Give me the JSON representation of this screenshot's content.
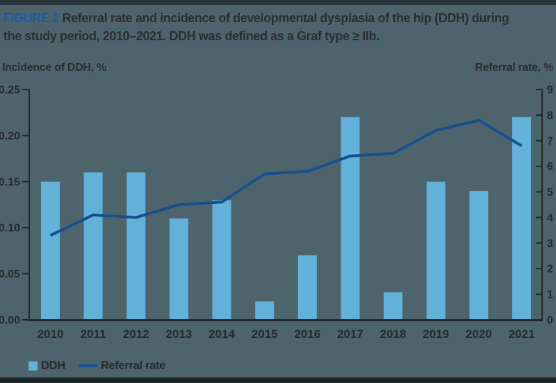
{
  "header": {
    "figure_label": "FIGURE 2",
    "title_line1": "Referral rate and incidence of developmental dysplasia of the hip (DDH) during",
    "title_line2": "the study period, 2010–2021. DDH was defined as a Graf type ≥ IIb."
  },
  "colors": {
    "background": "#4e646d",
    "top_bar": "#2a343b",
    "bottom_bar": "#1b2429",
    "bar_fill": "#61b1d8",
    "line_stroke": "#174f8d",
    "axis_stroke": "#21282c",
    "text": "#25292c",
    "figure_label_blue": "#1a5aa8"
  },
  "chart_data": {
    "type": "bar",
    "subtype": "bar+line combo, dual axis",
    "categories": [
      "2010",
      "2011",
      "2012",
      "2013",
      "2014",
      "2015",
      "2016",
      "2017",
      "2018",
      "2019",
      "2020",
      "2021"
    ],
    "series": [
      {
        "name": "DDH",
        "mark": "bar",
        "axis": "left",
        "values": [
          0.15,
          0.16,
          0.16,
          0.11,
          0.13,
          0.02,
          0.07,
          0.22,
          0.03,
          0.15,
          0.14,
          0.22
        ]
      },
      {
        "name": "Referral rate",
        "mark": "line",
        "axis": "right",
        "values": [
          3.3,
          4.1,
          4.0,
          4.5,
          4.6,
          5.7,
          5.8,
          6.4,
          6.5,
          7.4,
          7.8,
          6.8
        ]
      }
    ],
    "left_axis": {
      "label": "Incidence of DDH, %",
      "min": 0,
      "max": 0.25,
      "step": 0.05,
      "decimals": 2
    },
    "right_axis": {
      "label": "Referral rate, %",
      "min": 0,
      "max": 9,
      "step": 1,
      "decimals": 0
    },
    "grid": false,
    "legend_position": "bottom-left"
  }
}
